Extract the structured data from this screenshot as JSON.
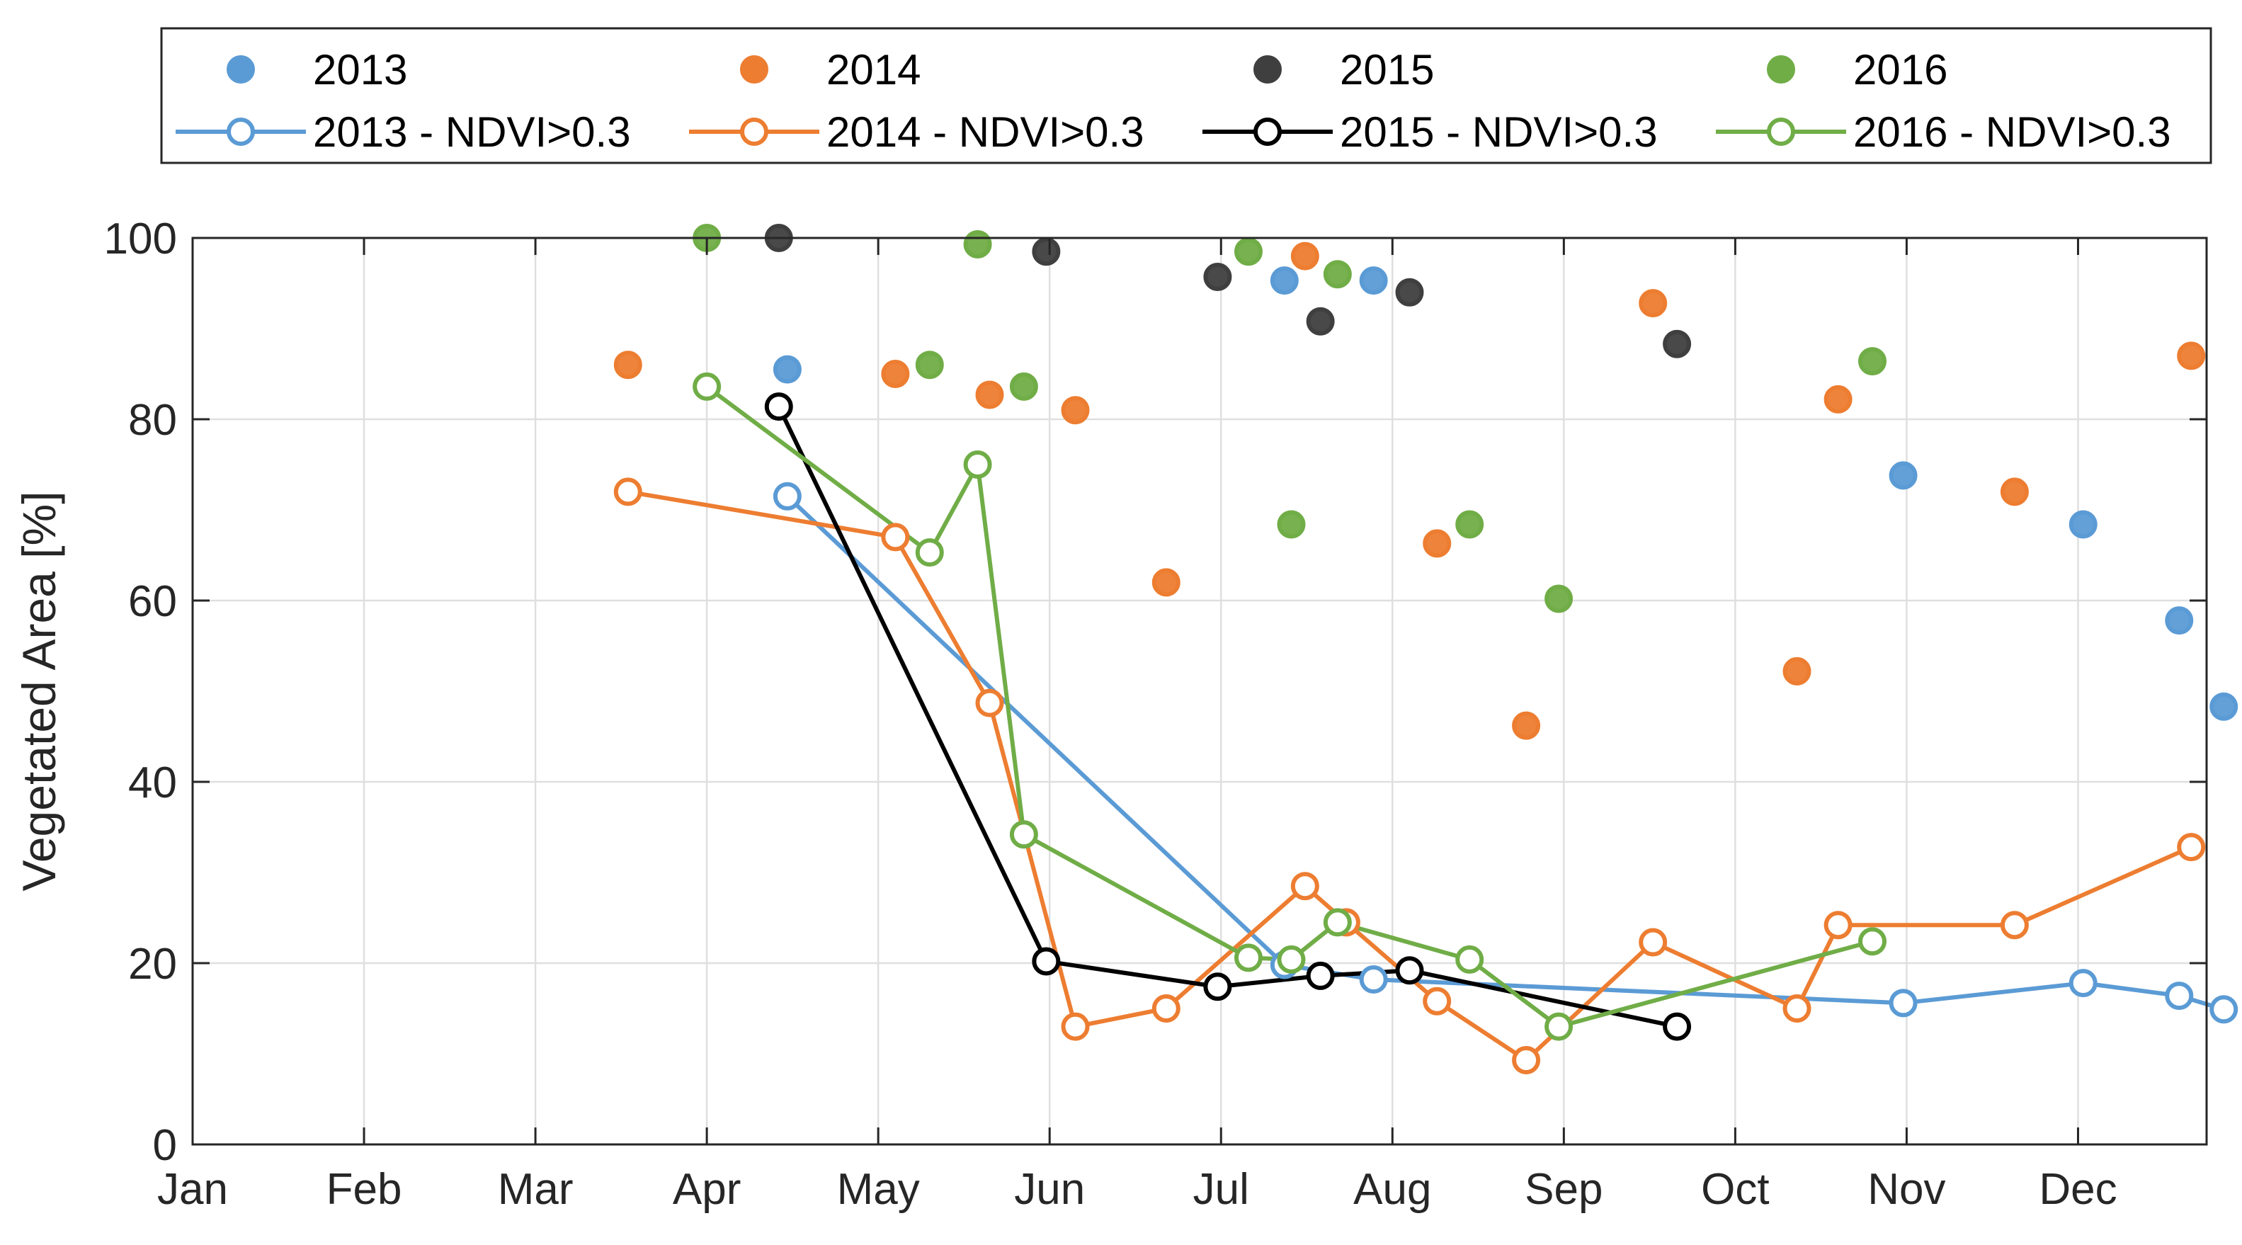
{
  "chart_data": {
    "type": "scatter",
    "title": "",
    "xlabel": "",
    "ylabel": "Vegetated Area [%]",
    "x_unit": "month (0 = Jan 1)",
    "xlim": [
      0,
      11.75
    ],
    "ylim": [
      0,
      100
    ],
    "x_ticks": [
      {
        "value": 0,
        "label": "Jan"
      },
      {
        "value": 1,
        "label": "Feb"
      },
      {
        "value": 2,
        "label": "Mar"
      },
      {
        "value": 3,
        "label": "Apr"
      },
      {
        "value": 4,
        "label": "May"
      },
      {
        "value": 5,
        "label": "Jun"
      },
      {
        "value": 6,
        "label": "Jul"
      },
      {
        "value": 7,
        "label": "Aug"
      },
      {
        "value": 8,
        "label": "Sep"
      },
      {
        "value": 9,
        "label": "Oct"
      },
      {
        "value": 10,
        "label": "Nov"
      },
      {
        "value": 11,
        "label": "Dec"
      }
    ],
    "y_ticks": [
      0,
      20,
      40,
      60,
      80,
      100
    ],
    "grid": true,
    "legend_position": "top-outside",
    "series": [
      {
        "name": "2013",
        "year": "2013",
        "kind": "points",
        "color": "#5b9bd5",
        "x": [
          3.47,
          6.37,
          6.89,
          9.98,
          11.03,
          11.59,
          11.85
        ],
        "y": [
          85.5,
          95.3,
          95.3,
          73.8,
          68.4,
          57.8,
          48.3
        ]
      },
      {
        "name": "2014",
        "year": "2014",
        "kind": "points",
        "color": "#ed7d31",
        "x": [
          2.54,
          4.1,
          4.65,
          5.15,
          5.68,
          6.49,
          7.26,
          7.78,
          8.52,
          9.36,
          9.6,
          10.63,
          11.66
        ],
        "y": [
          86.0,
          85.0,
          82.7,
          81.0,
          62.0,
          98.0,
          66.3,
          46.2,
          92.8,
          52.2,
          82.2,
          72.0,
          87.0
        ],
        "group": "2014"
      },
      {
        "name": "2015",
        "year": "2015",
        "kind": "points",
        "color": "#3f3f3f",
        "x": [
          3.42,
          4.98,
          5.98,
          6.58,
          7.1,
          8.66
        ],
        "y": [
          100.0,
          98.5,
          95.7,
          90.8,
          94.0,
          88.3
        ]
      },
      {
        "name": "2016",
        "year": "2016",
        "kind": "points",
        "color": "#70ad47",
        "x": [
          3.0,
          4.3,
          4.58,
          4.85,
          6.16,
          6.41,
          6.68,
          7.45,
          7.97,
          9.8
        ],
        "y": [
          100.0,
          86.0,
          99.3,
          83.6,
          98.5,
          68.4,
          96.0,
          68.4,
          60.2,
          86.4
        ]
      },
      {
        "name": "2013 - NDVI>0.3",
        "year": "2013",
        "kind": "line",
        "color": "#5b9bd5",
        "x": [
          3.47,
          6.37,
          6.89,
          9.98,
          11.03,
          11.59,
          11.85
        ],
        "y": [
          71.5,
          19.8,
          18.2,
          15.6,
          17.8,
          16.4,
          14.9
        ]
      },
      {
        "name": "2014 - NDVI>0.3",
        "year": "2014",
        "kind": "line",
        "color": "#ed7d31",
        "x": [
          2.54,
          4.1,
          4.65,
          5.15,
          5.68,
          6.49,
          6.73,
          7.26,
          7.78,
          8.52,
          9.36,
          9.6,
          10.63,
          11.66
        ],
        "y": [
          72.0,
          67.0,
          48.7,
          13.0,
          15.0,
          28.5,
          24.5,
          15.8,
          9.3,
          22.3,
          15.0,
          24.2,
          24.2,
          32.8
        ]
      },
      {
        "name": "2015 - NDVI>0.3",
        "year": "2015",
        "kind": "line",
        "color": "#000000",
        "x": [
          3.42,
          4.98,
          5.98,
          6.58,
          7.1,
          8.66
        ],
        "y": [
          81.4,
          20.2,
          17.4,
          18.6,
          19.2,
          13.0
        ]
      },
      {
        "name": "2016 - NDVI>0.3",
        "year": "2016",
        "kind": "line",
        "color": "#70ad47",
        "x": [
          3.0,
          4.3,
          4.58,
          4.85,
          6.16,
          6.41,
          6.68,
          7.45,
          7.97,
          9.8
        ],
        "y": [
          83.6,
          65.3,
          75.0,
          34.2,
          20.6,
          20.4,
          24.5,
          20.4,
          13.0,
          22.4
        ]
      }
    ]
  }
}
